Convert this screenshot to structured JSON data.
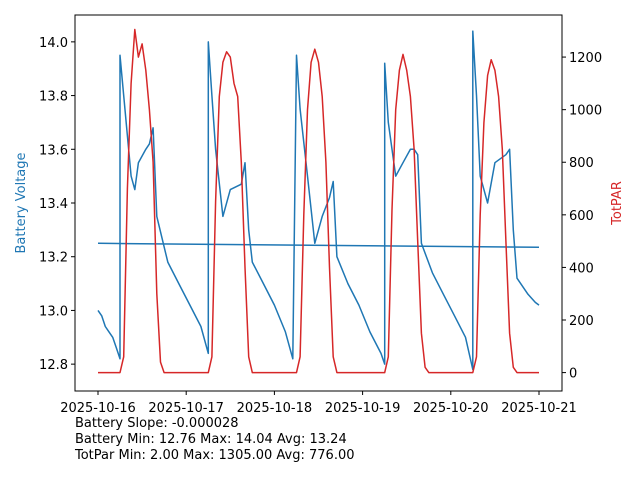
{
  "chart_data": {
    "type": "line",
    "x_tick_labels": [
      "2025-10-16",
      "2025-10-17",
      "2025-10-18",
      "2025-10-19",
      "2025-10-20",
      "2025-10-21"
    ],
    "x_range": [
      "2025-10-16",
      "2025-10-21"
    ],
    "left_axis": {
      "label": "Battery Voltage",
      "color": "#1f77b4",
      "ylim": [
        12.7,
        14.1
      ],
      "ticks": [
        "12.8",
        "13.0",
        "13.2",
        "13.4",
        "13.6",
        "13.8",
        "14.0"
      ]
    },
    "right_axis": {
      "label": "TotPAR",
      "color": "#d62728",
      "ylim": [
        -70,
        1360
      ],
      "ticks": [
        "0",
        "200",
        "400",
        "600",
        "800",
        "1000",
        "1200"
      ]
    },
    "series": [
      {
        "axis": "left",
        "color": "#1f77b4",
        "x": [
          "2025-10-16 00:00",
          "2025-10-16 01:00",
          "2025-10-16 02:00",
          "2025-10-16 03:00",
          "2025-10-16 04:00",
          "2025-10-16 05:00",
          "2025-10-16 06:00",
          "2025-10-16 06:00",
          "2025-10-16 07:00",
          "2025-10-16 09:00",
          "2025-10-16 10:00",
          "2025-10-16 11:00",
          "2025-10-16 13:00",
          "2025-10-16 14:00",
          "2025-10-16 15:00",
          "2025-10-16 16:00",
          "2025-10-16 19:00",
          "2025-10-16 22:00",
          "2025-10-17 01:00",
          "2025-10-17 04:00",
          "2025-10-17 06:00",
          "2025-10-17 06:00",
          "2025-10-17 07:00",
          "2025-10-17 08:00",
          "2025-10-17 10:00",
          "2025-10-17 12:00",
          "2025-10-17 15:00",
          "2025-10-17 16:00",
          "2025-10-17 17:00",
          "2025-10-17 18:00",
          "2025-10-17 21:00",
          "2025-10-18 00:00",
          "2025-10-18 03:00",
          "2025-10-18 05:00",
          "2025-10-18 06:00",
          "2025-10-18 07:00",
          "2025-10-18 09:00",
          "2025-10-18 11:00",
          "2025-10-18 13:00",
          "2025-10-18 15:00",
          "2025-10-18 16:00",
          "2025-10-18 17:00",
          "2025-10-18 20:00",
          "2025-10-18 23:00",
          "2025-10-19 02:00",
          "2025-10-19 05:00",
          "2025-10-19 06:00",
          "2025-10-19 06:00",
          "2025-10-19 07:00",
          "2025-10-19 09:00",
          "2025-10-19 11:00",
          "2025-10-19 13:00",
          "2025-10-19 14:00",
          "2025-10-19 15:00",
          "2025-10-19 16:00",
          "2025-10-19 19:00",
          "2025-10-19 22:00",
          "2025-10-20 01:00",
          "2025-10-20 04:00",
          "2025-10-20 06:00",
          "2025-10-20 06:00",
          "2025-10-20 07:00",
          "2025-10-20 08:00",
          "2025-10-20 10:00",
          "2025-10-20 12:00",
          "2025-10-20 15:00",
          "2025-10-20 16:00",
          "2025-10-20 17:00",
          "2025-10-20 18:00",
          "2025-10-20 21:00",
          "2025-10-20 23:00",
          "2025-10-21 00:00"
        ],
        "y": [
          13.0,
          12.98,
          12.94,
          12.92,
          12.9,
          12.86,
          12.82,
          13.95,
          13.8,
          13.5,
          13.45,
          13.55,
          13.6,
          13.62,
          13.68,
          13.35,
          13.18,
          13.1,
          13.02,
          12.94,
          12.84,
          14.0,
          13.8,
          13.6,
          13.35,
          13.45,
          13.47,
          13.55,
          13.3,
          13.18,
          13.1,
          13.02,
          12.92,
          12.82,
          13.95,
          13.75,
          13.5,
          13.25,
          13.35,
          13.42,
          13.48,
          13.2,
          13.1,
          13.02,
          12.92,
          12.84,
          12.8,
          13.92,
          13.7,
          13.5,
          13.55,
          13.6,
          13.6,
          13.58,
          13.25,
          13.14,
          13.06,
          12.98,
          12.9,
          12.78,
          14.04,
          13.8,
          13.5,
          13.4,
          13.55,
          13.58,
          13.6,
          13.3,
          13.12,
          13.06,
          13.03,
          13.02
        ]
      },
      {
        "axis": "left",
        "color": "#1f77b4",
        "x": [
          "2025-10-16 00:00",
          "2025-10-21 00:00"
        ],
        "y": [
          13.25,
          13.235
        ]
      },
      {
        "axis": "right",
        "color": "#d62728",
        "x": [
          "2025-10-16 00:00",
          "2025-10-16 06:00",
          "2025-10-16 07:00",
          "2025-10-16 08:00",
          "2025-10-16 09:00",
          "2025-10-16 10:00",
          "2025-10-16 11:00",
          "2025-10-16 12:00",
          "2025-10-16 13:00",
          "2025-10-16 14:00",
          "2025-10-16 15:00",
          "2025-10-16 16:00",
          "2025-10-16 17:00",
          "2025-10-16 18:00",
          "2025-10-17 06:00",
          "2025-10-17 07:00",
          "2025-10-17 08:00",
          "2025-10-17 09:00",
          "2025-10-17 10:00",
          "2025-10-17 11:00",
          "2025-10-17 12:00",
          "2025-10-17 13:00",
          "2025-10-17 14:00",
          "2025-10-17 15:00",
          "2025-10-17 16:00",
          "2025-10-17 17:00",
          "2025-10-17 18:00",
          "2025-10-18 06:00",
          "2025-10-18 07:00",
          "2025-10-18 08:00",
          "2025-10-18 09:00",
          "2025-10-18 10:00",
          "2025-10-18 11:00",
          "2025-10-18 12:00",
          "2025-10-18 13:00",
          "2025-10-18 14:00",
          "2025-10-18 15:00",
          "2025-10-18 16:00",
          "2025-10-18 17:00",
          "2025-10-18 18:00",
          "2025-10-19 06:00",
          "2025-10-19 07:00",
          "2025-10-19 08:00",
          "2025-10-19 09:00",
          "2025-10-19 10:00",
          "2025-10-19 11:00",
          "2025-10-19 12:00",
          "2025-10-19 13:00",
          "2025-10-19 14:00",
          "2025-10-19 15:00",
          "2025-10-19 16:00",
          "2025-10-19 17:00",
          "2025-10-19 18:00",
          "2025-10-20 06:00",
          "2025-10-20 07:00",
          "2025-10-20 08:00",
          "2025-10-20 09:00",
          "2025-10-20 10:00",
          "2025-10-20 11:00",
          "2025-10-20 12:00",
          "2025-10-20 13:00",
          "2025-10-20 14:00",
          "2025-10-20 15:00",
          "2025-10-20 16:00",
          "2025-10-20 17:00",
          "2025-10-20 18:00",
          "2025-10-21 00:00"
        ],
        "y": [
          0,
          0,
          60,
          700,
          1100,
          1305,
          1200,
          1250,
          1150,
          1000,
          800,
          300,
          40,
          0,
          0,
          60,
          650,
          1050,
          1180,
          1220,
          1200,
          1100,
          1050,
          800,
          400,
          60,
          0,
          0,
          60,
          600,
          1000,
          1180,
          1230,
          1180,
          1050,
          800,
          400,
          60,
          0,
          0,
          0,
          60,
          620,
          1000,
          1150,
          1210,
          1150,
          1050,
          850,
          500,
          150,
          20,
          0,
          0,
          60,
          600,
          950,
          1130,
          1190,
          1150,
          1050,
          850,
          500,
          150,
          20,
          0,
          0
        ]
      }
    ],
    "stats": {
      "line1": "Battery Slope: -0.000028",
      "line2": "Battery Min: 12.76 Max: 14.04 Avg: 13.24",
      "line3": "TotPar Min: 2.00 Max: 1305.00 Avg: 776.00"
    }
  }
}
